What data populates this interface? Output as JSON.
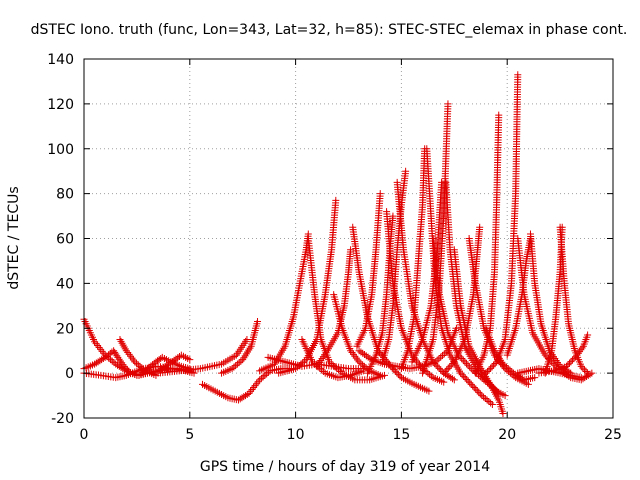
{
  "chart_data": {
    "type": "scatter",
    "title": "dSTEC Iono. truth (func, Lon=343, Lat=32, h=85): STEC-STEC_elemax in phase cont.",
    "xlabel": "GPS time / hours of day 319 of year 2014",
    "ylabel": "dSTEC  / TECUs",
    "xlim": [
      0,
      25
    ],
    "ylim": [
      -20,
      140
    ],
    "xticks": [
      0,
      5,
      10,
      15,
      20,
      25
    ],
    "yticks": [
      -20,
      0,
      20,
      40,
      60,
      80,
      100,
      120,
      140
    ],
    "grid": true,
    "marker": "plus",
    "color": "#e00000",
    "series": [
      {
        "points": [
          [
            0.0,
            24
          ],
          [
            0.5,
            14
          ],
          [
            1.0,
            8
          ],
          [
            1.5,
            4
          ],
          [
            2.0,
            1
          ],
          [
            2.5,
            -1
          ],
          [
            3.0,
            0
          ],
          [
            3.5,
            1
          ],
          [
            4.0,
            2
          ],
          [
            4.5,
            2
          ],
          [
            5.0,
            1
          ]
        ]
      },
      {
        "points": [
          [
            0.0,
            2
          ],
          [
            0.5,
            4
          ],
          [
            1.0,
            7
          ],
          [
            1.4,
            10
          ],
          [
            1.6,
            7
          ],
          [
            1.9,
            3
          ],
          [
            2.2,
            0
          ],
          [
            2.6,
            -1
          ],
          [
            3.0,
            0
          ],
          [
            3.5,
            1
          ],
          [
            4.0,
            4
          ],
          [
            4.6,
            8
          ],
          [
            5.0,
            6
          ]
        ]
      },
      {
        "points": [
          [
            0.0,
            0
          ],
          [
            0.8,
            -1
          ],
          [
            1.5,
            -2
          ],
          [
            2.0,
            -1
          ],
          [
            2.8,
            2
          ],
          [
            3.5,
            3
          ],
          [
            4.2,
            2
          ],
          [
            4.8,
            1
          ],
          [
            5.2,
            0
          ]
        ]
      },
      {
        "points": [
          [
            1.7,
            15
          ],
          [
            2.0,
            10
          ],
          [
            2.4,
            5
          ],
          [
            2.9,
            1
          ],
          [
            3.4,
            -1
          ]
        ]
      },
      {
        "points": [
          [
            2.6,
            -1
          ],
          [
            3.0,
            2
          ],
          [
            3.4,
            5
          ],
          [
            3.7,
            7
          ],
          [
            4.1,
            5
          ],
          [
            4.6,
            3
          ],
          [
            5.0,
            2
          ]
        ]
      },
      {
        "points": [
          [
            3.5,
            0
          ],
          [
            4.5,
            1
          ],
          [
            5.5,
            2
          ],
          [
            6.5,
            4
          ],
          [
            7.2,
            8
          ],
          [
            7.7,
            15
          ]
        ]
      },
      {
        "points": [
          [
            5.6,
            -5
          ],
          [
            6.2,
            -8
          ],
          [
            6.8,
            -11
          ],
          [
            7.3,
            -12
          ],
          [
            7.8,
            -9
          ],
          [
            8.3,
            -3
          ],
          [
            8.8,
            1
          ],
          [
            9.3,
            2
          ],
          [
            9.8,
            2
          ]
        ]
      },
      {
        "points": [
          [
            6.5,
            0
          ],
          [
            7.0,
            2
          ],
          [
            7.5,
            6
          ],
          [
            7.9,
            12
          ],
          [
            8.2,
            23
          ]
        ]
      },
      {
        "points": [
          [
            8.3,
            1
          ],
          [
            9.0,
            4
          ],
          [
            9.5,
            12
          ],
          [
            9.9,
            25
          ],
          [
            10.2,
            40
          ],
          [
            10.5,
            55
          ],
          [
            10.6,
            62
          ]
        ]
      },
      {
        "points": [
          [
            8.7,
            7
          ],
          [
            9.5,
            5
          ],
          [
            10.3,
            3
          ],
          [
            11.0,
            4
          ],
          [
            11.8,
            3
          ],
          [
            12.5,
            2
          ],
          [
            13.2,
            2
          ]
        ]
      },
      {
        "points": [
          [
            9.2,
            0
          ],
          [
            10.0,
            2
          ],
          [
            10.5,
            6
          ],
          [
            11.0,
            15
          ],
          [
            11.4,
            35
          ],
          [
            11.7,
            55
          ],
          [
            11.9,
            77
          ]
        ]
      },
      {
        "points": [
          [
            10.6,
            60
          ],
          [
            10.9,
            35
          ],
          [
            11.2,
            15
          ],
          [
            11.6,
            5
          ],
          [
            12.2,
            0
          ],
          [
            12.8,
            -3
          ],
          [
            13.5,
            -3
          ],
          [
            14.2,
            -1
          ]
        ]
      },
      {
        "points": [
          [
            10.3,
            15
          ],
          [
            10.8,
            5
          ],
          [
            11.4,
            0
          ],
          [
            12.0,
            -2
          ],
          [
            12.6,
            -1
          ],
          [
            13.2,
            1
          ]
        ]
      },
      {
        "points": [
          [
            11.0,
            3
          ],
          [
            11.5,
            10
          ],
          [
            12.0,
            18
          ],
          [
            12.3,
            30
          ],
          [
            12.5,
            45
          ],
          [
            12.6,
            55
          ]
        ]
      },
      {
        "points": [
          [
            12.7,
            65
          ],
          [
            13.0,
            45
          ],
          [
            13.4,
            25
          ],
          [
            13.9,
            10
          ],
          [
            14.5,
            3
          ],
          [
            15.0,
            -2
          ],
          [
            15.6,
            -5
          ],
          [
            16.3,
            -8
          ]
        ]
      },
      {
        "points": [
          [
            11.8,
            35
          ],
          [
            12.2,
            20
          ],
          [
            12.6,
            10
          ],
          [
            13.0,
            5
          ],
          [
            13.5,
            1
          ],
          [
            14.0,
            -1
          ]
        ]
      },
      {
        "points": [
          [
            12.9,
            12
          ],
          [
            13.3,
            20
          ],
          [
            13.6,
            35
          ],
          [
            13.8,
            55
          ],
          [
            14.0,
            80
          ]
        ]
      },
      {
        "points": [
          [
            13.4,
            0
          ],
          [
            13.8,
            8
          ],
          [
            14.1,
            18
          ],
          [
            14.3,
            35
          ],
          [
            14.5,
            60
          ],
          [
            14.6,
            70
          ]
        ]
      },
      {
        "points": [
          [
            14.1,
            5
          ],
          [
            14.4,
            15
          ],
          [
            14.6,
            30
          ],
          [
            14.8,
            55
          ],
          [
            15.0,
            75
          ],
          [
            15.2,
            90
          ]
        ]
      },
      {
        "points": [
          [
            14.3,
            72
          ],
          [
            14.6,
            40
          ],
          [
            15.0,
            20
          ],
          [
            15.5,
            8
          ],
          [
            16.0,
            2
          ],
          [
            16.5,
            -2
          ],
          [
            17.0,
            -4
          ]
        ]
      },
      {
        "points": [
          [
            14.8,
            85
          ],
          [
            15.1,
            55
          ],
          [
            15.5,
            30
          ],
          [
            16.0,
            15
          ],
          [
            16.5,
            5
          ],
          [
            17.0,
            0
          ],
          [
            17.5,
            -3
          ]
        ]
      },
      {
        "points": [
          [
            13.0,
            10
          ],
          [
            13.6,
            6
          ],
          [
            14.2,
            4
          ],
          [
            14.8,
            3
          ],
          [
            15.4,
            2
          ],
          [
            16.0,
            3
          ],
          [
            16.6,
            5
          ],
          [
            17.2,
            10
          ],
          [
            17.6,
            20
          ]
        ]
      },
      {
        "points": [
          [
            15.0,
            2
          ],
          [
            15.3,
            10
          ],
          [
            15.6,
            25
          ],
          [
            15.8,
            50
          ],
          [
            16.0,
            75
          ],
          [
            16.1,
            100
          ]
        ]
      },
      {
        "points": [
          [
            16.2,
            100
          ],
          [
            16.4,
            70
          ],
          [
            16.6,
            40
          ],
          [
            16.9,
            20
          ],
          [
            17.3,
            8
          ],
          [
            17.8,
            0
          ],
          [
            18.3,
            -5
          ],
          [
            18.8,
            -10
          ],
          [
            19.3,
            -14
          ]
        ]
      },
      {
        "points": [
          [
            15.5,
            5
          ],
          [
            16.0,
            15
          ],
          [
            16.4,
            30
          ],
          [
            16.7,
            55
          ],
          [
            16.9,
            85
          ]
        ]
      },
      {
        "points": [
          [
            16.0,
            0
          ],
          [
            16.5,
            15
          ],
          [
            16.8,
            40
          ],
          [
            17.0,
            70
          ],
          [
            17.2,
            120
          ]
        ]
      },
      {
        "points": [
          [
            17.1,
            85
          ],
          [
            17.3,
            55
          ],
          [
            17.6,
            30
          ],
          [
            18.0,
            12
          ],
          [
            18.5,
            3
          ],
          [
            19.0,
            -3
          ],
          [
            19.5,
            -8
          ],
          [
            19.9,
            -10
          ]
        ]
      },
      {
        "points": [
          [
            16.5,
            60
          ],
          [
            16.8,
            35
          ],
          [
            17.2,
            18
          ],
          [
            17.7,
            8
          ],
          [
            18.3,
            2
          ],
          [
            18.9,
            -3
          ],
          [
            19.4,
            -7
          ],
          [
            19.6,
            -9
          ]
        ]
      },
      {
        "points": [
          [
            17.0,
            0
          ],
          [
            17.5,
            5
          ],
          [
            18.0,
            15
          ],
          [
            18.4,
            35
          ],
          [
            18.6,
            55
          ],
          [
            18.7,
            65
          ]
        ]
      },
      {
        "points": [
          [
            17.5,
            55
          ],
          [
            17.8,
            30
          ],
          [
            18.2,
            12
          ],
          [
            18.7,
            3
          ],
          [
            19.2,
            -5
          ],
          [
            19.6,
            -12
          ],
          [
            19.8,
            -18
          ]
        ]
      },
      {
        "points": [
          [
            18.2,
            60
          ],
          [
            18.5,
            40
          ],
          [
            18.9,
            20
          ],
          [
            19.4,
            8
          ],
          [
            19.9,
            2
          ],
          [
            20.4,
            -2
          ],
          [
            21.0,
            -5
          ]
        ]
      },
      {
        "points": [
          [
            18.5,
            0
          ],
          [
            18.9,
            8
          ],
          [
            19.2,
            20
          ],
          [
            19.4,
            45
          ],
          [
            19.5,
            75
          ],
          [
            19.6,
            115
          ]
        ]
      },
      {
        "points": [
          [
            19.0,
            20
          ],
          [
            19.4,
            10
          ],
          [
            19.8,
            4
          ],
          [
            20.3,
            0
          ],
          [
            20.8,
            -3
          ],
          [
            21.3,
            -2
          ]
        ]
      },
      {
        "points": [
          [
            19.0,
            0
          ],
          [
            19.5,
            5
          ],
          [
            19.9,
            15
          ],
          [
            20.2,
            40
          ],
          [
            20.4,
            80
          ],
          [
            20.5,
            133
          ]
        ]
      },
      {
        "points": [
          [
            20.5,
            60
          ],
          [
            20.8,
            35
          ],
          [
            21.2,
            18
          ],
          [
            21.8,
            8
          ],
          [
            22.4,
            2
          ],
          [
            23.0,
            -2
          ],
          [
            23.5,
            -3
          ],
          [
            24.0,
            0
          ]
        ]
      },
      {
        "points": [
          [
            20.0,
            8
          ],
          [
            20.4,
            20
          ],
          [
            20.7,
            35
          ],
          [
            20.9,
            50
          ],
          [
            21.1,
            60
          ]
        ]
      },
      {
        "points": [
          [
            21.1,
            62
          ],
          [
            21.3,
            40
          ],
          [
            21.6,
            22
          ],
          [
            22.0,
            10
          ],
          [
            22.5,
            3
          ],
          [
            23.0,
            0
          ]
        ]
      },
      {
        "points": [
          [
            21.8,
            0
          ],
          [
            22.1,
            10
          ],
          [
            22.3,
            25
          ],
          [
            22.5,
            45
          ],
          [
            22.6,
            65
          ]
        ]
      },
      {
        "points": [
          [
            22.5,
            65
          ],
          [
            22.7,
            40
          ],
          [
            22.9,
            22
          ],
          [
            23.2,
            10
          ],
          [
            23.5,
            3
          ],
          [
            23.8,
            0
          ]
        ]
      },
      {
        "points": [
          [
            21.5,
            0
          ],
          [
            22.2,
            1
          ],
          [
            22.8,
            3
          ],
          [
            23.3,
            8
          ],
          [
            23.6,
            12
          ],
          [
            23.8,
            17
          ]
        ]
      },
      {
        "points": [
          [
            20.5,
            0
          ],
          [
            21.0,
            1
          ],
          [
            21.5,
            2
          ],
          [
            22.0,
            1
          ],
          [
            22.5,
            0
          ],
          [
            23.0,
            -1
          ],
          [
            23.5,
            -2
          ]
        ]
      }
    ]
  }
}
